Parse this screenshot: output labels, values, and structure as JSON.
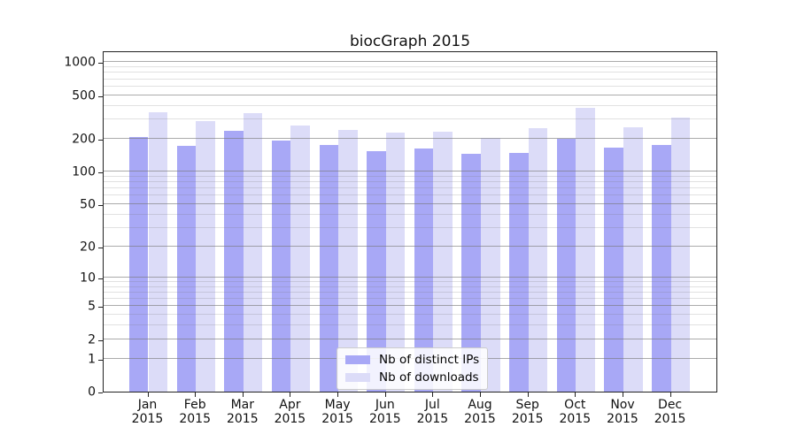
{
  "title": "biocGraph 2015",
  "colors": {
    "distinct_ips": "#a8a8f6",
    "downloads": "#dcdcf8",
    "grid_major": "#b0b0b0",
    "grid_minor": "#e1e1e1",
    "spine": "#222222",
    "legend_bg": "#ffffff",
    "legend_border": "#cccccc"
  },
  "chart_data": {
    "type": "bar",
    "title": "biocGraph 2015",
    "categories": [
      "Jan",
      "Feb",
      "Mar",
      "Apr",
      "May",
      "Jun",
      "Jul",
      "Aug",
      "Sep",
      "Oct",
      "Nov",
      "Dec"
    ],
    "year": "2015",
    "series": [
      {
        "key": "distinct-ips",
        "name": "Nb of distinct IPs",
        "color": "#a8a8f6",
        "values": [
          207,
          172,
          236,
          192,
          175,
          153,
          162,
          146,
          148,
          200,
          166,
          175
        ]
      },
      {
        "key": "downloads",
        "name": "Nb of downloads",
        "color": "#dcdcf8",
        "values": [
          351,
          288,
          340,
          266,
          241,
          228,
          232,
          203,
          252,
          380,
          253,
          313
        ]
      }
    ],
    "xlabel": "",
    "ylabel": "",
    "y_scale": "log10(1+x)",
    "y_major_ticks": [
      0,
      1,
      2,
      5,
      10,
      20,
      50,
      100,
      200,
      500,
      1000
    ],
    "y_minor_ticks": [
      3,
      4,
      6,
      7,
      8,
      9,
      30,
      40,
      60,
      70,
      80,
      90,
      300,
      400,
      600,
      700,
      800,
      900
    ],
    "ylim": [
      0,
      1280
    ],
    "grid": true,
    "legend_position": "lower center"
  }
}
